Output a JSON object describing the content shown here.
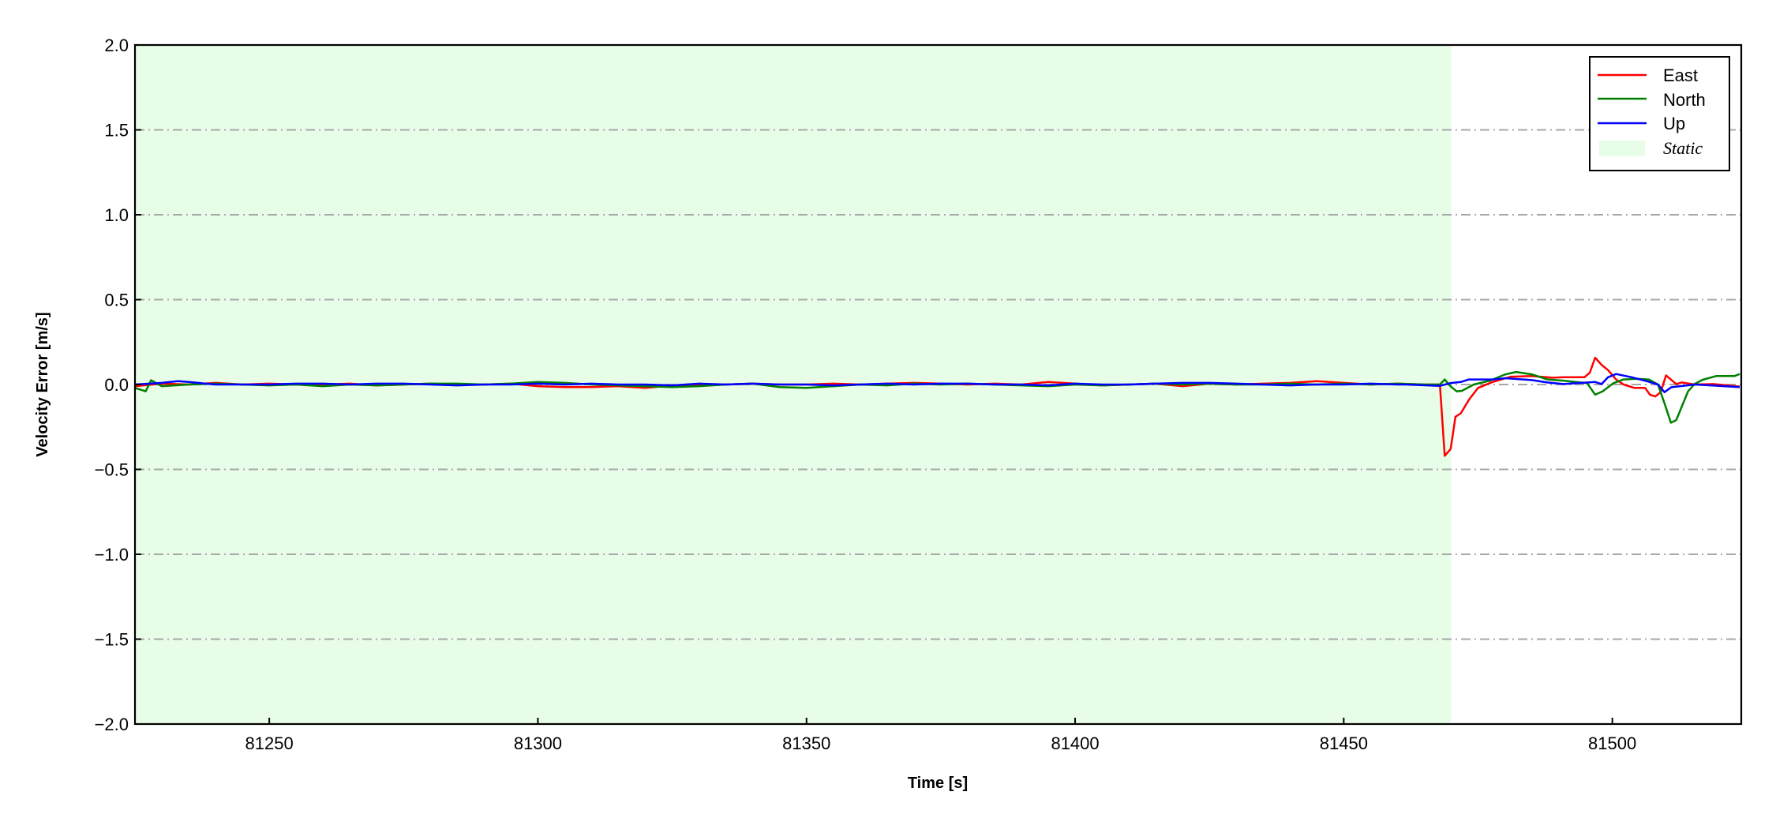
{
  "chart_data": {
    "type": "line",
    "title": "",
    "xlabel": "Time [s]",
    "ylabel": "Velocity Error [m/s]",
    "xlim": [
      81225,
      81524
    ],
    "ylim": [
      -2.0,
      2.0
    ],
    "xticks": [
      81250,
      81300,
      81350,
      81400,
      81450,
      81500
    ],
    "xtick_labels": [
      "81250",
      "81300",
      "81350",
      "81400",
      "81450",
      "81500"
    ],
    "yticks": [
      -2.0,
      -1.5,
      -1.0,
      -0.5,
      0.0,
      0.5,
      1.0,
      1.5,
      2.0
    ],
    "ytick_labels": [
      "−2.0",
      "−1.5",
      "−1.0",
      "−0.5",
      "0.0",
      "0.5",
      "1.0",
      "1.5",
      "2.0"
    ],
    "grid": "horizontal dash-dot",
    "legend_position": "top-right",
    "shaded_region": {
      "name": "Static",
      "x": [
        81225,
        81470
      ],
      "color": "#e8fde8"
    },
    "series": [
      {
        "name": "East",
        "color": "#ff0000",
        "x": [
          81225,
          81230,
          81235,
          81240,
          81245,
          81250,
          81255,
          81260,
          81265,
          81270,
          81275,
          81280,
          81285,
          81290,
          81295,
          81300,
          81305,
          81310,
          81315,
          81320,
          81325,
          81330,
          81335,
          81340,
          81345,
          81350,
          81355,
          81360,
          81365,
          81370,
          81375,
          81380,
          81385,
          81390,
          81395,
          81400,
          81405,
          81410,
          81415,
          81420,
          81425,
          81430,
          81435,
          81440,
          81445,
          81450,
          81455,
          81460,
          81465,
          81467.9,
          81468.8,
          81469.9,
          81470.8,
          81471.8,
          81473.3,
          81475,
          81477.7,
          81481.1,
          81485,
          81488.9,
          81490.9,
          81494.8,
          81495.8,
          81496.8,
          81498,
          81499.2,
          81500.7,
          81502.1,
          81504.1,
          81506.1,
          81507,
          81508,
          81509,
          81510,
          81511.9,
          81512.9,
          81515.4,
          81518.8,
          81523.7
        ],
        "y": [
          -0.01,
          0.005,
          0.0,
          0.01,
          0.0,
          0.005,
          0.0,
          0.0,
          0.005,
          -0.005,
          0.0,
          0.005,
          0.0,
          0.0,
          0.005,
          -0.01,
          -0.015,
          -0.015,
          -0.01,
          -0.02,
          -0.005,
          0.0,
          0.0,
          0.005,
          0.0,
          0.0,
          0.005,
          0.0,
          0.005,
          0.01,
          0.005,
          0.0,
          0.005,
          0.0,
          0.015,
          0.005,
          -0.005,
          0.0,
          0.005,
          -0.01,
          0.005,
          0.0,
          0.005,
          0.01,
          0.02,
          0.01,
          0.0,
          0.005,
          0.0,
          0.0,
          -0.42,
          -0.38,
          -0.19,
          -0.17,
          -0.09,
          -0.02,
          0.015,
          0.046,
          0.05,
          0.04,
          0.043,
          0.043,
          0.07,
          0.158,
          0.116,
          0.085,
          0.03,
          0.0,
          -0.02,
          -0.02,
          -0.06,
          -0.07,
          -0.045,
          0.054,
          0.003,
          0.012,
          0.0,
          0.003,
          -0.012
        ]
      },
      {
        "name": "North",
        "color": "#008000",
        "x": [
          81225,
          81227,
          81228,
          81230,
          81235,
          81240,
          81245,
          81250,
          81255,
          81260,
          81265,
          81270,
          81275,
          81280,
          81285,
          81290,
          81295,
          81300,
          81305,
          81310,
          81315,
          81320,
          81325,
          81330,
          81335,
          81340,
          81345,
          81350,
          81355,
          81360,
          81365,
          81370,
          81375,
          81380,
          81385,
          81390,
          81395,
          81400,
          81405,
          81410,
          81415,
          81420,
          81425,
          81430,
          81435,
          81440,
          81445,
          81450,
          81455,
          81460,
          81465,
          81467.9,
          81468.8,
          81469.8,
          81471,
          81472,
          81474.2,
          81477.2,
          81480.1,
          81482.1,
          81485,
          81487.9,
          81490.9,
          81495.3,
          81496.8,
          81498.2,
          81500.2,
          81502.1,
          81504.6,
          81506.8,
          81508.5,
          81509.7,
          81510.9,
          81511.9,
          81514.1,
          81515.3,
          81516.8,
          81519.3,
          81522.7,
          81523.7
        ],
        "y": [
          -0.02,
          -0.04,
          0.025,
          -0.01,
          0.0,
          0.005,
          0.0,
          -0.005,
          0.0,
          -0.01,
          0.0,
          -0.005,
          0.0,
          0.005,
          0.005,
          0.0,
          0.005,
          0.015,
          0.01,
          0.0,
          -0.005,
          -0.01,
          -0.015,
          -0.01,
          0.0,
          0.005,
          -0.015,
          -0.02,
          -0.01,
          0.0,
          -0.005,
          0.005,
          0.0,
          0.005,
          0.0,
          -0.005,
          -0.01,
          0.0,
          -0.005,
          0.0,
          0.005,
          0.0,
          0.005,
          0.0,
          0.0,
          0.005,
          0.0,
          0.005,
          0.0,
          0.005,
          0.0,
          0.0,
          0.03,
          -0.008,
          -0.04,
          -0.037,
          0.0,
          0.023,
          0.06,
          0.074,
          0.06,
          0.03,
          0.023,
          0.008,
          -0.06,
          -0.04,
          0.008,
          0.03,
          0.034,
          0.03,
          0.0,
          -0.11,
          -0.225,
          -0.21,
          -0.04,
          0.003,
          0.028,
          0.05,
          0.05,
          0.062
        ]
      },
      {
        "name": "Up",
        "color": "#0000ff",
        "x": [
          81225,
          81230,
          81233,
          81235,
          81240,
          81245,
          81250,
          81255,
          81260,
          81265,
          81270,
          81275,
          81280,
          81285,
          81290,
          81295,
          81300,
          81305,
          81310,
          81315,
          81320,
          81325,
          81330,
          81335,
          81340,
          81345,
          81350,
          81355,
          81360,
          81365,
          81370,
          81375,
          81380,
          81385,
          81390,
          81395,
          81400,
          81405,
          81410,
          81415,
          81420,
          81425,
          81430,
          81435,
          81440,
          81445,
          81450,
          81455,
          81460,
          81461.5,
          81467.9,
          81469.8,
          81471.8,
          81473.3,
          81477.7,
          81480.1,
          81485,
          81487.9,
          81490.9,
          81496.8,
          81498,
          81499.2,
          81500.7,
          81503.6,
          81506.5,
          81508.5,
          81509.7,
          81511,
          81515.4,
          81523.7
        ],
        "y": [
          0.0,
          0.01,
          0.02,
          0.015,
          0.0,
          0.0,
          0.0,
          0.005,
          0.005,
          0.0,
          0.005,
          0.005,
          0.0,
          -0.005,
          0.0,
          0.0,
          0.005,
          0.0,
          0.005,
          0.0,
          0.0,
          -0.005,
          0.005,
          0.0,
          0.005,
          0.0,
          0.0,
          -0.005,
          0.0,
          0.005,
          0.0,
          0.005,
          0.005,
          0.0,
          0.0,
          -0.005,
          0.005,
          0.0,
          0.0,
          0.005,
          0.01,
          0.01,
          0.005,
          0.0,
          -0.005,
          0.0,
          0.0,
          0.005,
          0.0,
          0.0,
          -0.008,
          0.008,
          0.015,
          0.03,
          0.03,
          0.037,
          0.026,
          0.012,
          0.003,
          0.015,
          0.003,
          0.043,
          0.062,
          0.043,
          0.019,
          0.0,
          -0.045,
          -0.016,
          0.0,
          -0.015
        ]
      }
    ]
  }
}
